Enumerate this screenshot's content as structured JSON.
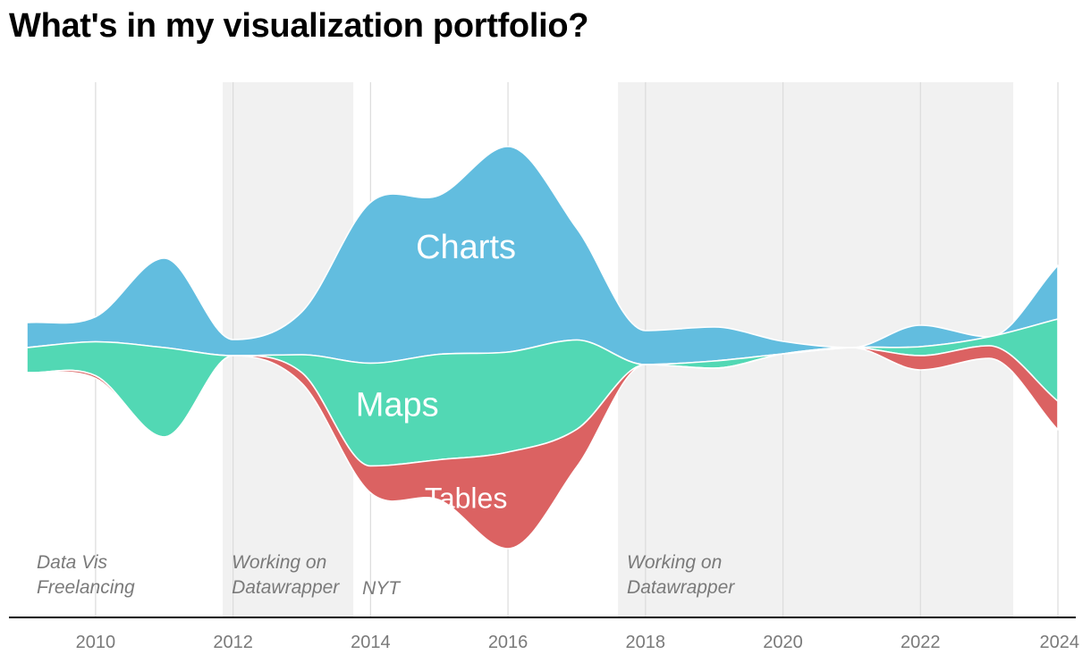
{
  "title": "What's in my visualization portfolio?",
  "chart_data": {
    "type": "area",
    "subtype": "streamgraph",
    "title": "What's in my visualization portfolio?",
    "xlim": [
      2009,
      2024
    ],
    "x_ticks": [
      2010,
      2012,
      2014,
      2016,
      2018,
      2020,
      2022,
      2024
    ],
    "grid": true,
    "x": [
      2009,
      2010,
      2011,
      2012,
      2013,
      2014,
      2015,
      2016,
      2017,
      2018,
      2019,
      2020,
      2021,
      2022,
      2023,
      2024
    ],
    "series": [
      {
        "name": "Charts",
        "color": "#62bddf",
        "values": [
          28,
          28,
          100,
          18,
          48,
          180,
          178,
          230,
          125,
          38,
          38,
          14,
          0,
          24,
          0,
          60
        ]
      },
      {
        "name": "Maps",
        "color": "#52d8b4",
        "values": [
          28,
          38,
          100,
          0,
          20,
          115,
          118,
          112,
          100,
          0,
          8,
          0,
          0,
          10,
          10,
          92
        ]
      },
      {
        "name": "Tables",
        "color": "#db6262",
        "values": [
          0,
          3,
          0,
          0,
          12,
          30,
          45,
          108,
          42,
          0,
          0,
          0,
          0,
          16,
          14,
          32
        ]
      }
    ],
    "annotations": [
      {
        "label_lines": [
          "Data Vis",
          "Freelancing"
        ],
        "start": 2009,
        "end": 2011.85,
        "shaded": false
      },
      {
        "label_lines": [
          "Working on",
          "Datawrapper"
        ],
        "start": 2011.85,
        "end": 2013.75,
        "shaded": true
      },
      {
        "label_lines": [
          "NYT"
        ],
        "start": 2013.75,
        "end": 2017.6,
        "shaded": false
      },
      {
        "label_lines": [
          "Working on",
          "Datawrapper"
        ],
        "start": 2017.6,
        "end": 2023.35,
        "shaded": true
      }
    ],
    "colors": {
      "shade": "#f1f1f1",
      "grid": "#dcdcdc",
      "axis": "#000000",
      "tick_text": "#7a7a7a",
      "annotation_text": "#7a7a7a"
    }
  }
}
